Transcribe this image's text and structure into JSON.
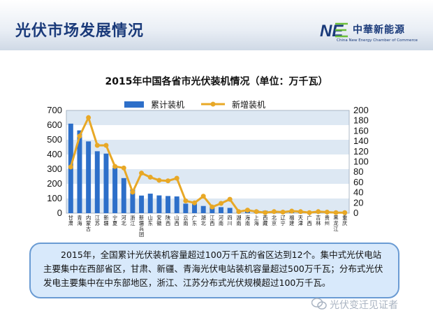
{
  "header": {
    "title": "光伏市场发展情况"
  },
  "logo": {
    "name_cn": "中華新能源",
    "name_en": "China New Energy Chamber of Commerce",
    "mark": "NE"
  },
  "chart_data": {
    "type": "bar+line",
    "title": "2015年中国各省市光伏装机情况（单位：万千瓦）",
    "categories": [
      "甘肃",
      "青海",
      "内蒙古",
      "江苏",
      "新疆",
      "宁夏",
      "河北",
      "浙江",
      "新疆兵团",
      "山东",
      "安徽",
      "陕西",
      "山西",
      "云南",
      "广东",
      "湖北",
      "江西",
      "河南",
      "四川",
      "湖南",
      "海南",
      "上海",
      "西藏",
      "北京",
      "辽宁",
      "福建",
      "天津",
      "广西",
      "吉林",
      "贵州",
      "黑龙江",
      "重庆"
    ],
    "series": [
      {
        "name": "累计装机",
        "type": "bar",
        "axis": "left",
        "values": [
          610,
          564,
          489,
          422,
          406,
          309,
          239,
          163,
          120,
          133,
          121,
          117,
          114,
          65,
          64,
          49,
          43,
          41,
          36,
          3,
          15,
          20,
          17,
          16,
          16,
          15,
          12,
          12,
          7,
          3,
          2,
          1
        ]
      },
      {
        "name": "新增装机",
        "type": "line",
        "axis": "right",
        "values": [
          90,
          150,
          186,
          132,
          132,
          91,
          88,
          41,
          78,
          70,
          64,
          63,
          68,
          24,
          20,
          33,
          12,
          19,
          27,
          3,
          6,
          3,
          1,
          3,
          2,
          4,
          3,
          1,
          3,
          2,
          1,
          1
        ]
      }
    ],
    "y_left": {
      "min": 0,
      "max": 700,
      "ticks": [
        0,
        100,
        200,
        300,
        400,
        500,
        600,
        700
      ]
    },
    "y_right": {
      "min": 0,
      "max": 200,
      "ticks": [
        0,
        20,
        40,
        60,
        80,
        100,
        120,
        140,
        160,
        180,
        200
      ]
    },
    "legend": "top-center",
    "colors": {
      "bar": "#2d6fc9",
      "line": "#e8a826",
      "band": "#dde8f3"
    }
  },
  "note": {
    "text": "2015年，全国累计光伏装机容量超过100万千瓦的省区达到12个。集中式光伏电站主要集中在西部省区，甘肃、新疆、青海光伏电站装机容量超过500万千瓦；分布式光伏发电主要集中在中东部地区，浙江、江苏分布式光伏规模超过100万千瓦。"
  },
  "watermark": {
    "text": "光伏变迁见证者"
  }
}
